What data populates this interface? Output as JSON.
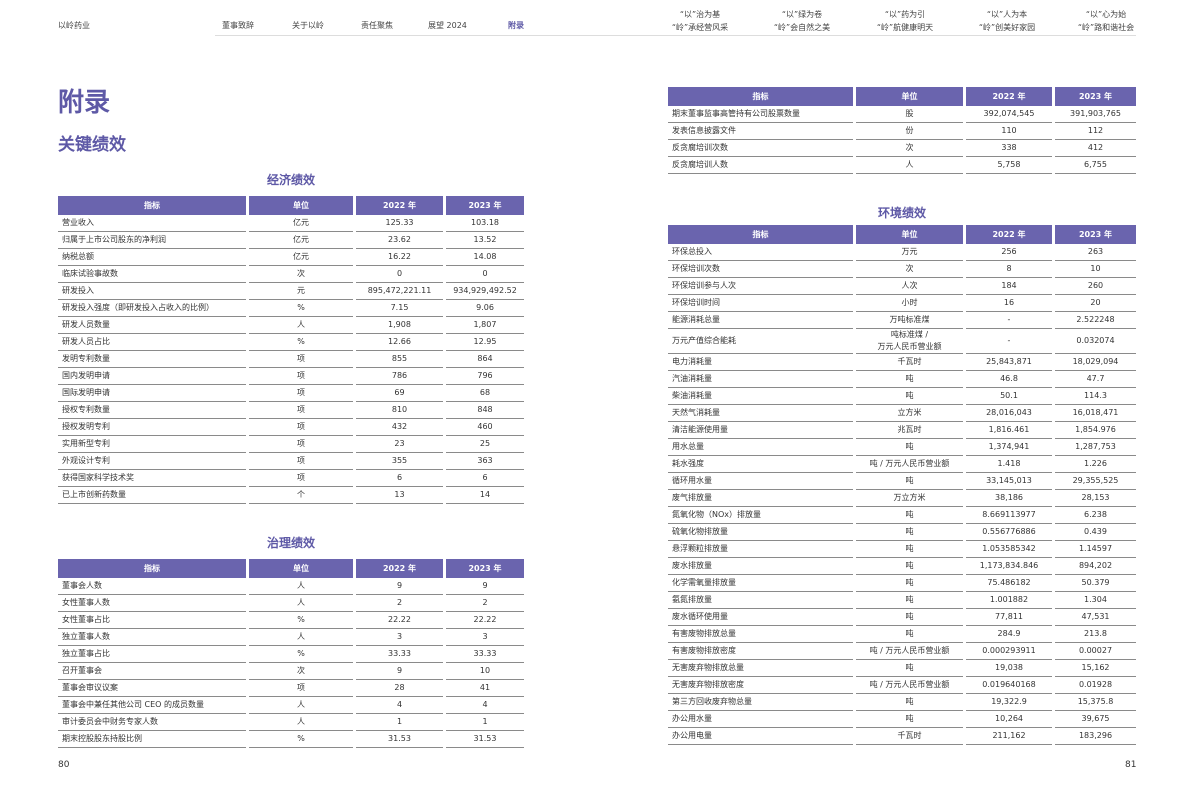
{
  "header": {
    "brand": "以岭药业",
    "nav": [
      "董事致辞",
      "关于以岭",
      "责任聚焦",
      "展望 2024",
      "附录"
    ],
    "themes": [
      [
        "“以”治为基",
        "“岭”承经营风采"
      ],
      [
        "“以”绿为卷",
        "“岭”会自然之美"
      ],
      [
        "“以”药为引",
        "“岭”航健康明天"
      ],
      [
        "“以”人为本",
        "“岭”创美好家园"
      ],
      [
        "“以”心为始",
        "“岭”路和谐社会"
      ]
    ]
  },
  "title": "附录",
  "subtitle": "关键绩效",
  "tables": [
    {
      "title": "经济绩效",
      "columns": [
        "指标",
        "单位",
        "2022 年",
        "2023 年"
      ],
      "rows": [
        [
          "营业收入",
          "亿元",
          "125.33",
          "103.18"
        ],
        [
          "归属于上市公司股东的净利润",
          "亿元",
          "23.62",
          "13.52"
        ],
        [
          "纳税总额",
          "亿元",
          "16.22",
          "14.08"
        ],
        [
          "临床试验事故数",
          "次",
          "0",
          "0"
        ],
        [
          "研发投入",
          "元",
          "895,472,221.11",
          "934,929,492.52"
        ],
        [
          "研发投入强度（即研发投入占收入的比例）",
          "%",
          "7.15",
          "9.06"
        ],
        [
          "研发人员数量",
          "人",
          "1,908",
          "1,807"
        ],
        [
          "研发人员占比",
          "%",
          "12.66",
          "12.95"
        ],
        [
          "发明专利数量",
          "项",
          "855",
          "864"
        ],
        [
          "国内发明申请",
          "项",
          "786",
          "796"
        ],
        [
          "国际发明申请",
          "项",
          "69",
          "68"
        ],
        [
          "授权专利数量",
          "项",
          "810",
          "848"
        ],
        [
          "授权发明专利",
          "项",
          "432",
          "460"
        ],
        [
          "实用新型专利",
          "项",
          "23",
          "25"
        ],
        [
          "外观设计专利",
          "项",
          "355",
          "363"
        ],
        [
          "获得国家科学技术奖",
          "项",
          "6",
          "6"
        ],
        [
          "已上市创新药数量",
          "个",
          "13",
          "14"
        ]
      ]
    },
    {
      "title": "治理绩效",
      "columns": [
        "指标",
        "单位",
        "2022 年",
        "2023 年"
      ],
      "rows": [
        [
          "董事会人数",
          "人",
          "9",
          "9"
        ],
        [
          "女性董事人数",
          "人",
          "2",
          "2"
        ],
        [
          "女性董事占比",
          "%",
          "22.22",
          "22.22"
        ],
        [
          "独立董事人数",
          "人",
          "3",
          "3"
        ],
        [
          "独立董事占比",
          "%",
          "33.33",
          "33.33"
        ],
        [
          "召开董事会",
          "次",
          "9",
          "10"
        ],
        [
          "董事会审议议案",
          "项",
          "28",
          "41"
        ],
        [
          "董事会中兼任其他公司 CEO 的成员数量",
          "人",
          "4",
          "4"
        ],
        [
          "审计委员会中财务专家人数",
          "人",
          "1",
          "1"
        ],
        [
          "期末控股股东持股比例",
          "%",
          "31.53",
          "31.53"
        ]
      ]
    },
    {
      "columns": [
        "指标",
        "单位",
        "2022 年",
        "2023 年"
      ],
      "rows": [
        [
          "期末董事监事高管持有公司股票数量",
          "股",
          "392,074,545",
          "391,903,765"
        ],
        [
          "发表信息披露文件",
          "份",
          "110",
          "112"
        ],
        [
          "反贪腐培训次数",
          "次",
          "338",
          "412"
        ],
        [
          "反贪腐培训人数",
          "人",
          "5,758",
          "6,755"
        ]
      ]
    },
    {
      "title": "环境绩效",
      "columns": [
        "指标",
        "单位",
        "2022 年",
        "2023 年"
      ],
      "rows": [
        [
          "环保总投入",
          "万元",
          "256",
          "263"
        ],
        [
          "环保培训次数",
          "次",
          "8",
          "10"
        ],
        [
          "环保培训参与人次",
          "人次",
          "184",
          "260"
        ],
        [
          "环保培训时间",
          "小时",
          "16",
          "20"
        ],
        [
          "能源消耗总量",
          "万吨标准煤",
          "-",
          "2.522248"
        ],
        [
          "万元产值综合能耗",
          "吨标准煤 /\n万元人民币营业额",
          "-",
          "0.032074"
        ],
        [
          "电力消耗量",
          "千瓦时",
          "25,843,871",
          "18,029,094"
        ],
        [
          "汽油消耗量",
          "吨",
          "46.8",
          "47.7"
        ],
        [
          "柴油消耗量",
          "吨",
          "50.1",
          "114.3"
        ],
        [
          "天然气消耗量",
          "立方米",
          "28,016,043",
          "16,018,471"
        ],
        [
          "清洁能源使用量",
          "兆瓦时",
          "1,816.461",
          "1,854.976"
        ],
        [
          "用水总量",
          "吨",
          "1,374,941",
          "1,287,753"
        ],
        [
          "耗水强度",
          "吨 / 万元人民币营业额",
          "1.418",
          "1.226"
        ],
        [
          "循环用水量",
          "吨",
          "33,145,013",
          "29,355,525"
        ],
        [
          "废气排放量",
          "万立方米",
          "38,186",
          "28,153"
        ],
        [
          "氮氧化物（NOx）排放量",
          "吨",
          "8.669113977",
          "6.238"
        ],
        [
          "硫氧化物排放量",
          "吨",
          "0.556776886",
          "0.439"
        ],
        [
          "悬浮颗粒排放量",
          "吨",
          "1.053585342",
          "1.14597"
        ],
        [
          "废水排放量",
          "吨",
          "1,173,834.846",
          "894,202"
        ],
        [
          "化学需氧量排放量",
          "吨",
          "75.486182",
          "50.379"
        ],
        [
          "氨氮排放量",
          "吨",
          "1.001882",
          "1.304"
        ],
        [
          "废水循环使用量",
          "吨",
          "77,811",
          "47,531"
        ],
        [
          "有害废物排放总量",
          "吨",
          "284.9",
          "213.8"
        ],
        [
          "有害废物排放密度",
          "吨 / 万元人民币营业额",
          "0.000293911",
          "0.00027"
        ],
        [
          "无害废弃物排放总量",
          "吨",
          "19,038",
          "15,162"
        ],
        [
          "无害废弃物排放密度",
          "吨 / 万元人民币营业额",
          "0.019640168",
          "0.01928"
        ],
        [
          "第三方回收废弃物总量",
          "吨",
          "19,322.9",
          "15,375.8"
        ],
        [
          "办公用水量",
          "吨",
          "10,264",
          "39,675"
        ],
        [
          "办公用电量",
          "千瓦时",
          "211,162",
          "183,296"
        ]
      ]
    }
  ],
  "pages": [
    "80",
    "81"
  ]
}
